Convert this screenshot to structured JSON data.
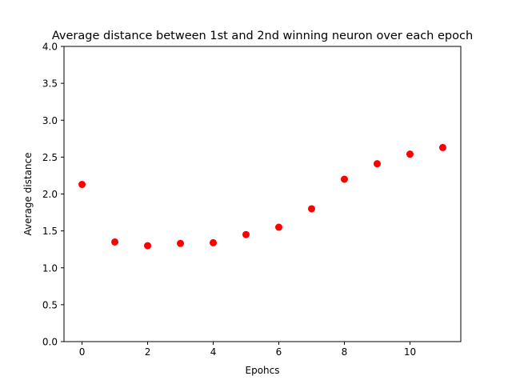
{
  "chart_data": {
    "type": "scatter",
    "title": "Average distance between 1st and 2nd winning neuron over each epoch",
    "xlabel": "Epohcs",
    "ylabel": "Average distance",
    "x": [
      0,
      1,
      2,
      3,
      4,
      5,
      6,
      7,
      8,
      9,
      10,
      11
    ],
    "y": [
      2.13,
      1.35,
      1.3,
      1.33,
      1.34,
      1.45,
      1.55,
      1.8,
      2.2,
      2.41,
      2.54,
      2.63
    ],
    "xlim": [
      -0.55,
      11.55
    ],
    "ylim": [
      0.0,
      4.0
    ],
    "xticks": [
      0,
      2,
      4,
      6,
      8,
      10
    ],
    "yticks": [
      0.0,
      0.5,
      1.0,
      1.5,
      2.0,
      2.5,
      3.0,
      3.5,
      4.0
    ],
    "grid": false,
    "legend": "none",
    "marker_color": "#ff0000"
  }
}
